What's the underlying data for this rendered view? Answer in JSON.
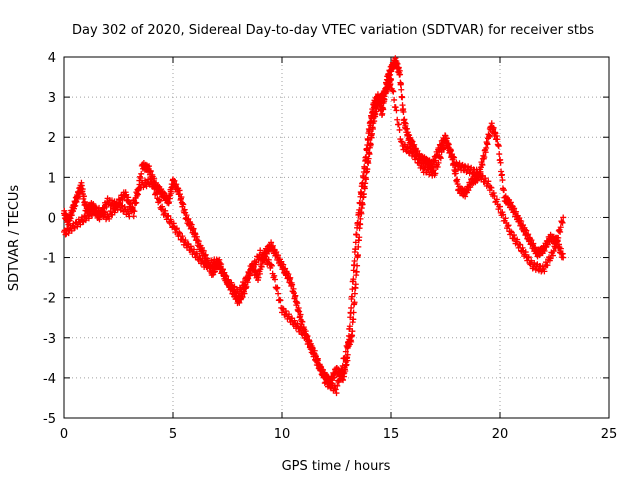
{
  "chart_data": {
    "type": "scatter",
    "title": "Day 302 of 2020, Sidereal Day-to-day VTEC variation (SDTVAR) for receiver stbs",
    "xlabel": "GPS time / hours",
    "ylabel": "SDTVAR / TECUs",
    "xlim": [
      0,
      25
    ],
    "ylim": [
      -5,
      4
    ],
    "xticks": [
      0,
      5,
      10,
      15,
      20,
      25
    ],
    "yticks": [
      -5,
      -4,
      -3,
      -2,
      -1,
      0,
      1,
      2,
      3,
      4
    ],
    "grid": true,
    "marker": "+",
    "color": "#ff0000",
    "series": [
      {
        "name": "stbs",
        "x": [
          0.0,
          0.2,
          0.4,
          0.6,
          0.8,
          1.0,
          1.3,
          1.6,
          2.0,
          2.4,
          2.8,
          3.2,
          3.6,
          3.9,
          4.2,
          4.5,
          4.8,
          5.0,
          5.3,
          5.6,
          5.9,
          6.2,
          6.5,
          6.8,
          7.1,
          7.4,
          7.7,
          8.0,
          8.3,
          8.6,
          8.9,
          9.2,
          9.5,
          9.8,
          10.1,
          10.4,
          10.7,
          11.0,
          11.3,
          11.6,
          11.9,
          12.2,
          12.5,
          12.8,
          13.0,
          13.2,
          13.4,
          13.6,
          13.8,
          14.0,
          14.2,
          14.4,
          14.6,
          14.8,
          15.0,
          15.2,
          15.4,
          15.6,
          15.8,
          16.0,
          16.3,
          16.6,
          16.9,
          17.2,
          17.5,
          17.8,
          18.1,
          18.4,
          18.7,
          19.0,
          19.3,
          19.6,
          19.9,
          20.2,
          20.5,
          20.8,
          21.1,
          21.4,
          21.7,
          22.0,
          22.3,
          22.6,
          22.9
        ],
        "values": [
          0.1,
          -0.1,
          0.2,
          0.5,
          0.8,
          0.2,
          0.3,
          0.0,
          0.4,
          0.3,
          0.6,
          0.1,
          1.3,
          1.2,
          0.8,
          0.6,
          0.4,
          0.9,
          0.6,
          0.0,
          -0.3,
          -0.7,
          -1.0,
          -1.4,
          -1.1,
          -1.5,
          -1.8,
          -2.1,
          -1.8,
          -1.2,
          -1.5,
          -0.9,
          -0.7,
          -1.0,
          -1.3,
          -1.6,
          -2.2,
          -2.8,
          -3.2,
          -3.6,
          -3.9,
          -4.1,
          -3.8,
          -4.0,
          -3.5,
          -2.0,
          -0.5,
          0.5,
          1.3,
          2.2,
          2.8,
          3.0,
          2.6,
          3.4,
          3.7,
          3.9,
          3.6,
          2.4,
          2.0,
          1.8,
          1.5,
          1.4,
          1.3,
          1.7,
          2.0,
          1.5,
          0.7,
          0.6,
          0.9,
          1.0,
          1.6,
          2.3,
          1.9,
          0.5,
          0.3,
          0.0,
          -0.3,
          -0.6,
          -0.9,
          -0.8,
          -0.5,
          -0.6,
          -1.0
        ],
        "extra_x": [
          0.0,
          0.5,
          1.0,
          1.5,
          2.0,
          2.5,
          3.0,
          3.5,
          4.0,
          4.5,
          5.0,
          5.5,
          6.0,
          6.5,
          7.0,
          7.5,
          8.0,
          8.5,
          9.0,
          9.5,
          10.0,
          10.5,
          11.0,
          11.5,
          12.0,
          12.5,
          13.0,
          13.2,
          13.4,
          13.6,
          13.8,
          14.0,
          14.2,
          14.4,
          14.6,
          14.8,
          15.0,
          15.5,
          16.0,
          16.5,
          17.0,
          17.5,
          18.0,
          18.5,
          19.0,
          19.5,
          20.0,
          20.5,
          21.0,
          21.5,
          22.0,
          22.5,
          22.9
        ],
        "extra_values": [
          -0.4,
          -0.2,
          0.0,
          0.2,
          0.0,
          0.3,
          0.1,
          0.8,
          0.9,
          0.2,
          -0.2,
          -0.6,
          -0.9,
          -1.2,
          -1.1,
          -1.6,
          -1.9,
          -1.4,
          -0.9,
          -1.2,
          -2.3,
          -2.6,
          -2.9,
          -3.4,
          -4.1,
          -4.3,
          -3.2,
          -3.0,
          -1.5,
          0.0,
          0.8,
          1.6,
          2.4,
          2.9,
          3.0,
          3.2,
          3.4,
          1.8,
          1.6,
          1.2,
          1.1,
          1.9,
          1.3,
          1.2,
          1.1,
          0.8,
          0.2,
          -0.4,
          -0.8,
          -1.2,
          -1.3,
          -0.8,
          0.0
        ]
      }
    ]
  }
}
